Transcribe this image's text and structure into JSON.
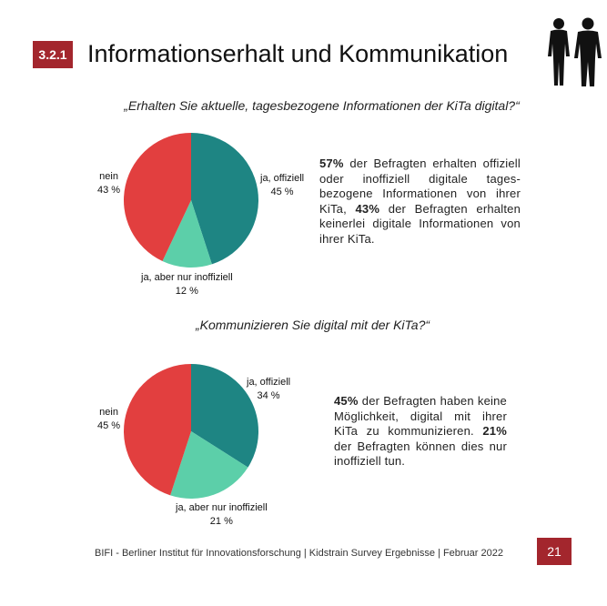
{
  "header": {
    "section_number": "3.2.1",
    "title": "Informationserhalt und Kommunikation",
    "icon": "people-silhouette-icon"
  },
  "colors": {
    "accent": "#a3262d",
    "teal": "#1e8583",
    "mint": "#5ccfa9",
    "red": "#e23f3f"
  },
  "section1": {
    "question": "„Erhalten Sie aktuelle, tagesbezogene Informationen der KiTa digital?“",
    "paragraph": {
      "pct1": "57%",
      "text1": " der Befragten erhalten offiziell oder inoffiziell digitale tages-bezogene Informationen von ihrer KiTa, ",
      "pct2": "43%",
      "text2": " der Befragten erhalten keinerlei digitale Informationen von ihrer KiTa."
    }
  },
  "section2": {
    "question": "„Kommunizieren Sie digital mit der KiTa?“",
    "paragraph": {
      "pct1": "45%",
      "text1": " der Befragten haben keine Möglichkeit, digital mit ihrer KiTa zu kommunizieren. ",
      "pct2": "21%",
      "text2": " der Befragten können dies nur inoffiziell tun."
    }
  },
  "chart_data": [
    {
      "type": "pie",
      "categories": [
        "ja, offiziell",
        "ja, aber nur inoffiziell",
        "nein"
      ],
      "values": [
        45,
        12,
        43
      ],
      "value_labels": [
        "45 %",
        "12 %",
        "43 %"
      ],
      "colors": [
        "#1e8583",
        "#5ccfa9",
        "#e23f3f"
      ]
    },
    {
      "type": "pie",
      "categories": [
        "ja, offiziell",
        "ja, aber nur inoffiziell",
        "nein"
      ],
      "values": [
        34,
        21,
        45
      ],
      "value_labels": [
        "34 %",
        "21 %",
        "45 %"
      ],
      "colors": [
        "#1e8583",
        "#5ccfa9",
        "#e23f3f"
      ]
    }
  ],
  "footer": {
    "text": "BIFI - Berliner Institut für Innovationsforschung | Kidstrain Survey Ergebnisse | Februar 2022",
    "page_number": "21"
  }
}
